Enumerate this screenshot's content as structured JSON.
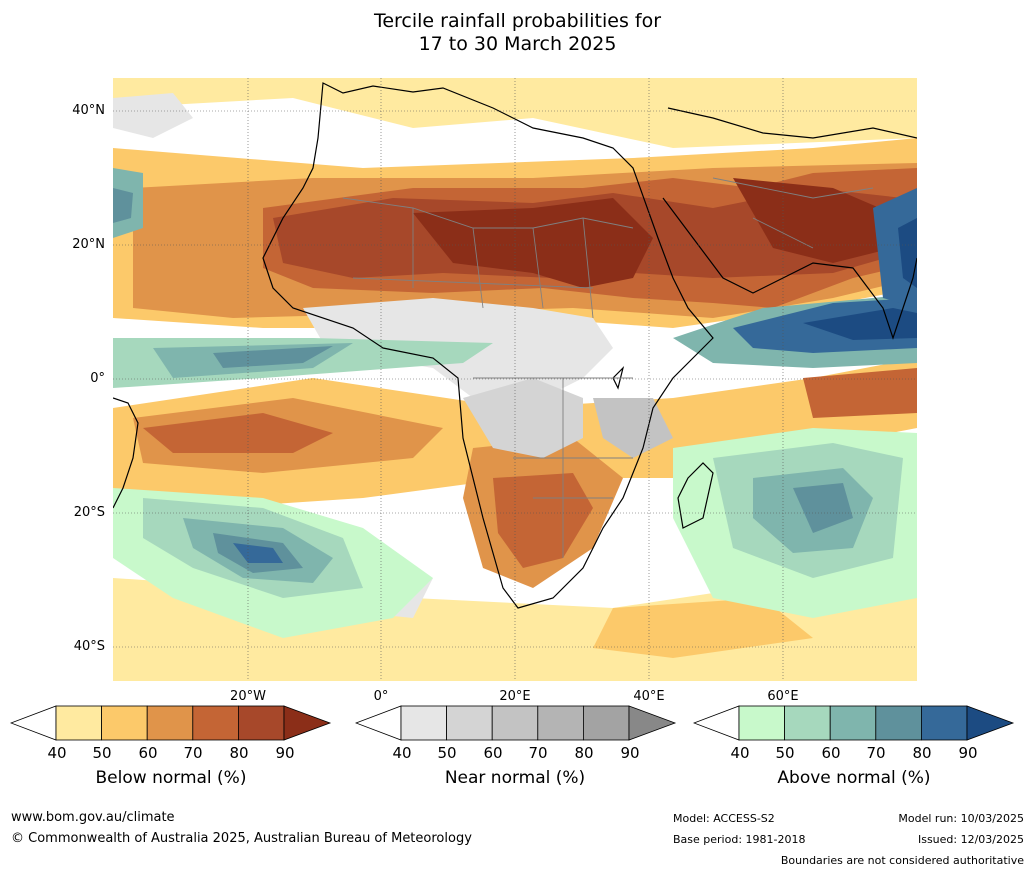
{
  "title": {
    "line1": "Tercile rainfall probabilities for",
    "line2": "17 to 30 March 2025"
  },
  "map": {
    "lat_labels": [
      "40°N",
      "20°N",
      "0°",
      "20°S",
      "40°S"
    ],
    "lon_labels": [
      "20°W",
      "0°",
      "20°E",
      "40°E",
      "60°E"
    ],
    "colors": {
      "ocean_bg": "#ffffff",
      "coastline": "#000000",
      "border": "#808080",
      "grid": "#555555"
    }
  },
  "colorbars": [
    {
      "title": "Below normal (%)",
      "ticks": [
        "40",
        "50",
        "60",
        "70",
        "80",
        "90"
      ],
      "colors": [
        "#ffffff",
        "#ffeaa0",
        "#fcc96a",
        "#e0944a",
        "#c46535",
        "#a7482a",
        "#8b2e18"
      ]
    },
    {
      "title": "Near normal (%)",
      "ticks": [
        "40",
        "50",
        "60",
        "70",
        "80",
        "90"
      ],
      "colors": [
        "#ffffff",
        "#e6e6e6",
        "#d4d4d4",
        "#c3c3c3",
        "#b4b4b4",
        "#a3a3a3",
        "#888888"
      ]
    },
    {
      "title": "Above normal (%)",
      "ticks": [
        "40",
        "50",
        "60",
        "70",
        "80",
        "90"
      ],
      "colors": [
        "#ffffff",
        "#c8f9cb",
        "#a6d8bd",
        "#7fb5ad",
        "#5f919c",
        "#356999",
        "#1c4b82"
      ]
    }
  ],
  "footer": {
    "url": "www.bom.gov.au/climate",
    "copyright": "© Commonwealth of Australia 2025, Australian Bureau of Meteorology",
    "model": "Model: ACCESS-S2",
    "base_period": "Base period: 1981-2018",
    "model_run": "Model run: 10/03/2025",
    "issued": "Issued: 12/03/2025",
    "disclaimer": "Boundaries are not considered authoritative"
  }
}
